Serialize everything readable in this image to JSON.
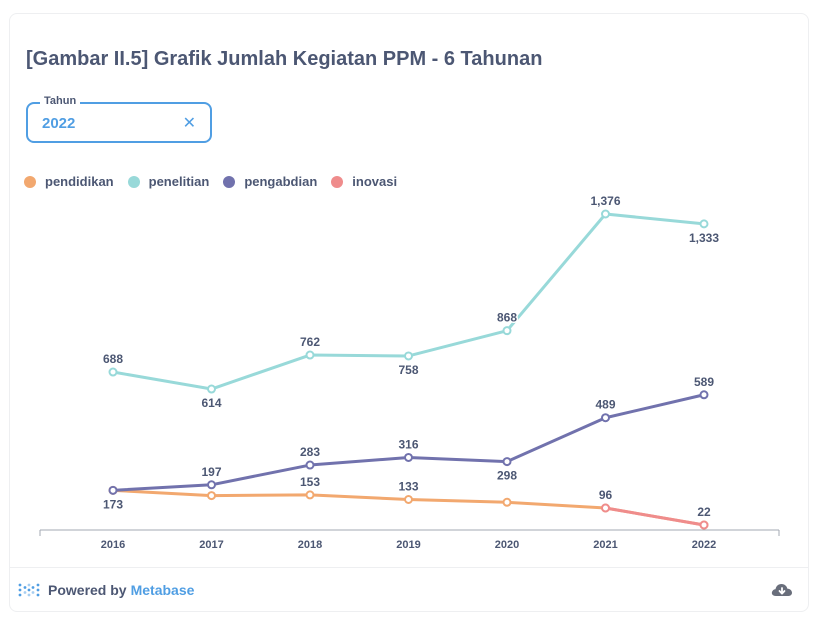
{
  "card": {
    "title": "[Gambar II.5] Grafik Jumlah Kegiatan PPM - 6 Tahunan"
  },
  "filter": {
    "label": "Tahun",
    "value": "2022",
    "clear_glyph": "✕"
  },
  "footer": {
    "powered_by": "Powered by",
    "brand": "Metabase",
    "logo_icon": "metabase-logo-icon",
    "download_icon": "download-cloud-icon"
  },
  "chart_data": {
    "type": "line",
    "x": [
      "2016",
      "2017",
      "2018",
      "2019",
      "2020",
      "2021",
      "2022"
    ],
    "ylim": [
      0,
      1400
    ],
    "grid": false,
    "legend_position": "top-left",
    "series": [
      {
        "name": "pendidikan",
        "color": "#f2a86f",
        "values": [
          173,
          150,
          153,
          133,
          121,
          96,
          22
        ],
        "labels_shown": [
          false,
          false,
          true,
          true,
          false,
          true,
          false
        ]
      },
      {
        "name": "penelitian",
        "color": "#98d9d9",
        "values": [
          688,
          614,
          762,
          758,
          868,
          1376,
          1333
        ],
        "labels_shown": [
          true,
          true,
          true,
          true,
          true,
          true,
          true
        ]
      },
      {
        "name": "pengabdian",
        "color": "#7172ad",
        "values": [
          173,
          197,
          283,
          316,
          298,
          489,
          589
        ],
        "labels_shown": [
          true,
          true,
          true,
          true,
          true,
          true,
          true
        ]
      },
      {
        "name": "inovasi",
        "color": "#ef8c8c",
        "values": [
          null,
          null,
          null,
          null,
          null,
          96,
          22
        ],
        "labels_shown": [
          false,
          false,
          false,
          false,
          false,
          false,
          true
        ]
      }
    ]
  }
}
